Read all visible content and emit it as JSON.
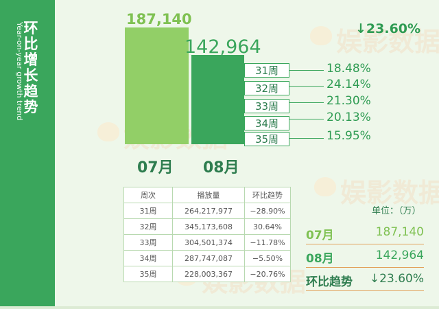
{
  "sidebar": {
    "title": "环比增长趋势",
    "subtitle": "Year-on-year growth trend"
  },
  "watermark": {
    "text": "娱影数据"
  },
  "colors": {
    "accent_green": "#3aa65c",
    "light_green": "#92cf67",
    "divider_orange": "#e2a15a"
  },
  "chart_data": {
    "type": "bar",
    "categories": [
      "07月",
      "08月"
    ],
    "values": [
      187140,
      142964
    ],
    "value_labels": [
      "187,140",
      "142,964"
    ],
    "trend_label": "↓23.60%",
    "breakdown": {
      "category": "08月",
      "segments": [
        {
          "week": "31周",
          "share": "18.48%"
        },
        {
          "week": "32周",
          "share": "24.14%"
        },
        {
          "week": "33周",
          "share": "21.30%"
        },
        {
          "week": "34周",
          "share": "20.13%"
        },
        {
          "week": "35周",
          "share": "15.95%"
        }
      ]
    }
  },
  "table": {
    "headers": [
      "周次",
      "播放量",
      "环比趋势"
    ],
    "rows": [
      [
        "31周",
        "264,217,977",
        "−28.90%"
      ],
      [
        "32周",
        "345,173,608",
        "30.64%"
      ],
      [
        "33周",
        "304,501,374",
        "−11.78%"
      ],
      [
        "34周",
        "287,747,087",
        "−5.50%"
      ],
      [
        "35周",
        "228,003,367",
        "−20.76%"
      ]
    ]
  },
  "summary": {
    "unit": "单位：（万）",
    "rows": [
      {
        "label": "07月",
        "value": "187,140"
      },
      {
        "label": "08月",
        "value": "142,964"
      },
      {
        "label": "环比趋势",
        "value": "↓23.60%"
      }
    ]
  }
}
